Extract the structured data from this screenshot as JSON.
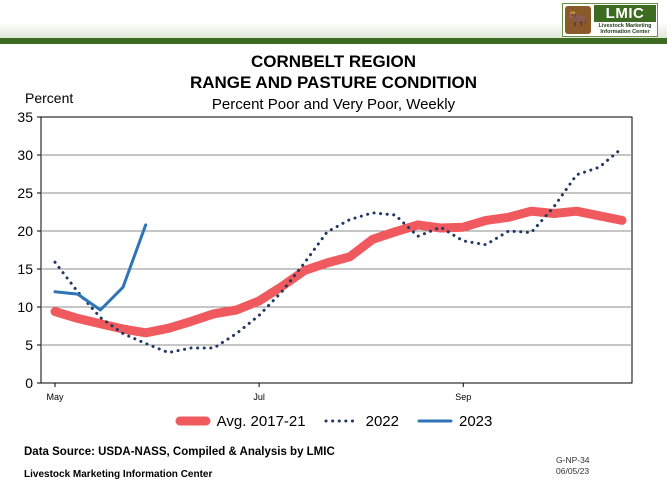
{
  "header": {
    "logo_title": "LMIC",
    "logo_line1": "Livestock Marketing",
    "logo_line2": "Information Center",
    "logo_mark": "🐂"
  },
  "footer": {
    "source": "Data Source:  USDA-NASS, Compiled & Analysis by LMIC",
    "org": "Livestock Marketing Information Center",
    "code": "G-NP-34",
    "date": "06/05/23"
  },
  "colors": {
    "avg": "#f05a5e",
    "y2022": "#1f3864",
    "y2023": "#2e75b6",
    "brand_green": "#3d6b21"
  },
  "chart_data": {
    "type": "line",
    "title": "CORNBELT REGION",
    "title2": "RANGE AND PASTURE CONDITION",
    "subtitle": "Percent Poor and Very Poor, Weekly",
    "ylabel": "Percent",
    "xlabel": "",
    "ylim": [
      0,
      35
    ],
    "yticks": [
      0,
      5,
      10,
      15,
      20,
      25,
      30,
      35
    ],
    "x_tick_labels": [
      {
        "label": "May",
        "week": 0
      },
      {
        "label": "Jul",
        "week": 9
      },
      {
        "label": "Sep",
        "week": 18
      }
    ],
    "week_count": 26,
    "grid": true,
    "legend_position": "bottom",
    "series": [
      {
        "name": "Avg. 2017-21",
        "style": "thick",
        "values": [
          9.4,
          8.5,
          7.8,
          7.1,
          6.6,
          7.2,
          8.1,
          9.1,
          9.6,
          10.8,
          12.7,
          14.8,
          15.8,
          16.6,
          18.9,
          19.9,
          20.8,
          20.4,
          20.5,
          21.4,
          21.8,
          22.6,
          22.3,
          22.6,
          22.0,
          21.4
        ]
      },
      {
        "name": "2022",
        "style": "dotted",
        "values": [
          15.9,
          12.0,
          8.6,
          6.5,
          5.2,
          4.0,
          4.6,
          4.6,
          6.5,
          8.9,
          12.0,
          15.8,
          19.9,
          21.5,
          22.4,
          22.1,
          19.3,
          20.5,
          18.7,
          18.2,
          20.0,
          19.8,
          23.2,
          27.4,
          28.4,
          30.9
        ]
      },
      {
        "name": "2023",
        "style": "solid",
        "values": [
          12.0,
          11.7,
          9.6,
          12.6,
          20.8
        ]
      }
    ]
  }
}
